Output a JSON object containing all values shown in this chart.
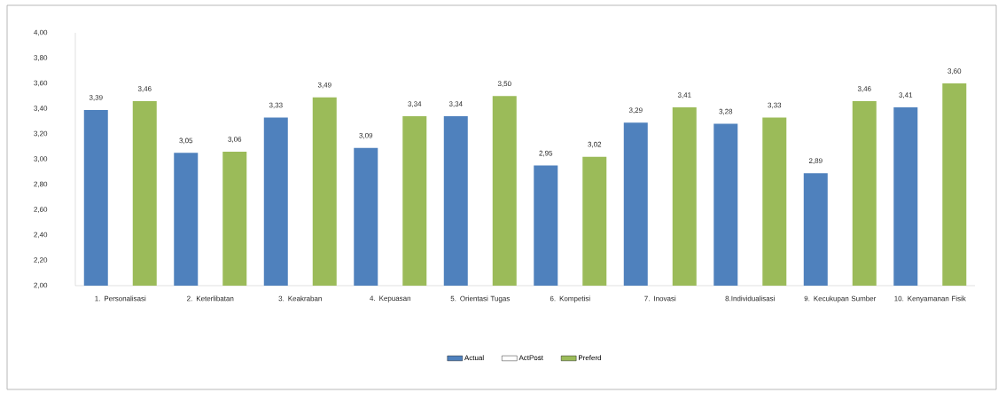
{
  "chart_data": {
    "type": "bar",
    "categories": [
      "1. Personalisasi",
      "2. Keterlibatan",
      "3. Keakraban",
      "4. Kepuasan",
      "5. Orientasi Tugas",
      "6. Kompetisi",
      "7. Inovasi",
      "8.Individualisasi",
      "9. Kecukupan Sumber",
      "10. Kenyamanan Fisik"
    ],
    "series": [
      {
        "name": "Actual",
        "color": "#4f81bd",
        "values": [
          3.39,
          3.05,
          3.33,
          3.09,
          3.34,
          2.95,
          3.29,
          3.28,
          2.89,
          3.41
        ],
        "value_labels": [
          "3,39",
          "3,05",
          "3,33",
          "3,09",
          "3,34",
          "2,95",
          "3,29",
          "3,28",
          "2,89",
          "3,41"
        ]
      },
      {
        "name": "ActPost",
        "color": "#ffffff",
        "values": [
          null,
          null,
          null,
          null,
          null,
          null,
          null,
          null,
          null,
          null
        ]
      },
      {
        "name": "Preferd",
        "color": "#9bbb59",
        "values": [
          3.46,
          3.06,
          3.49,
          3.34,
          3.5,
          3.02,
          3.41,
          3.33,
          3.46,
          3.6
        ],
        "value_labels": [
          "3,46",
          "3,06",
          "3,49",
          "3,34",
          "3,50",
          "3,02",
          "3,41",
          "3,33",
          "3,46",
          "3,60"
        ]
      }
    ],
    "ylim": [
      2,
      4
    ],
    "yticks": [
      {
        "value": 2,
        "label": "2,00"
      },
      {
        "value": 2.2,
        "label": "2,20"
      },
      {
        "value": 2.4,
        "label": "2,40"
      },
      {
        "value": 2.6,
        "label": "2,60"
      },
      {
        "value": 2.8,
        "label": "2,80"
      },
      {
        "value": 3,
        "label": "3,00"
      },
      {
        "value": 3.2,
        "label": "3,20"
      },
      {
        "value": 3.4,
        "label": "3,40"
      },
      {
        "value": 3.6,
        "label": "3,60"
      },
      {
        "value": 3.8,
        "label": "3,80"
      },
      {
        "value": 4,
        "label": "4,00"
      }
    ],
    "grid": false,
    "legend": "bottom"
  }
}
